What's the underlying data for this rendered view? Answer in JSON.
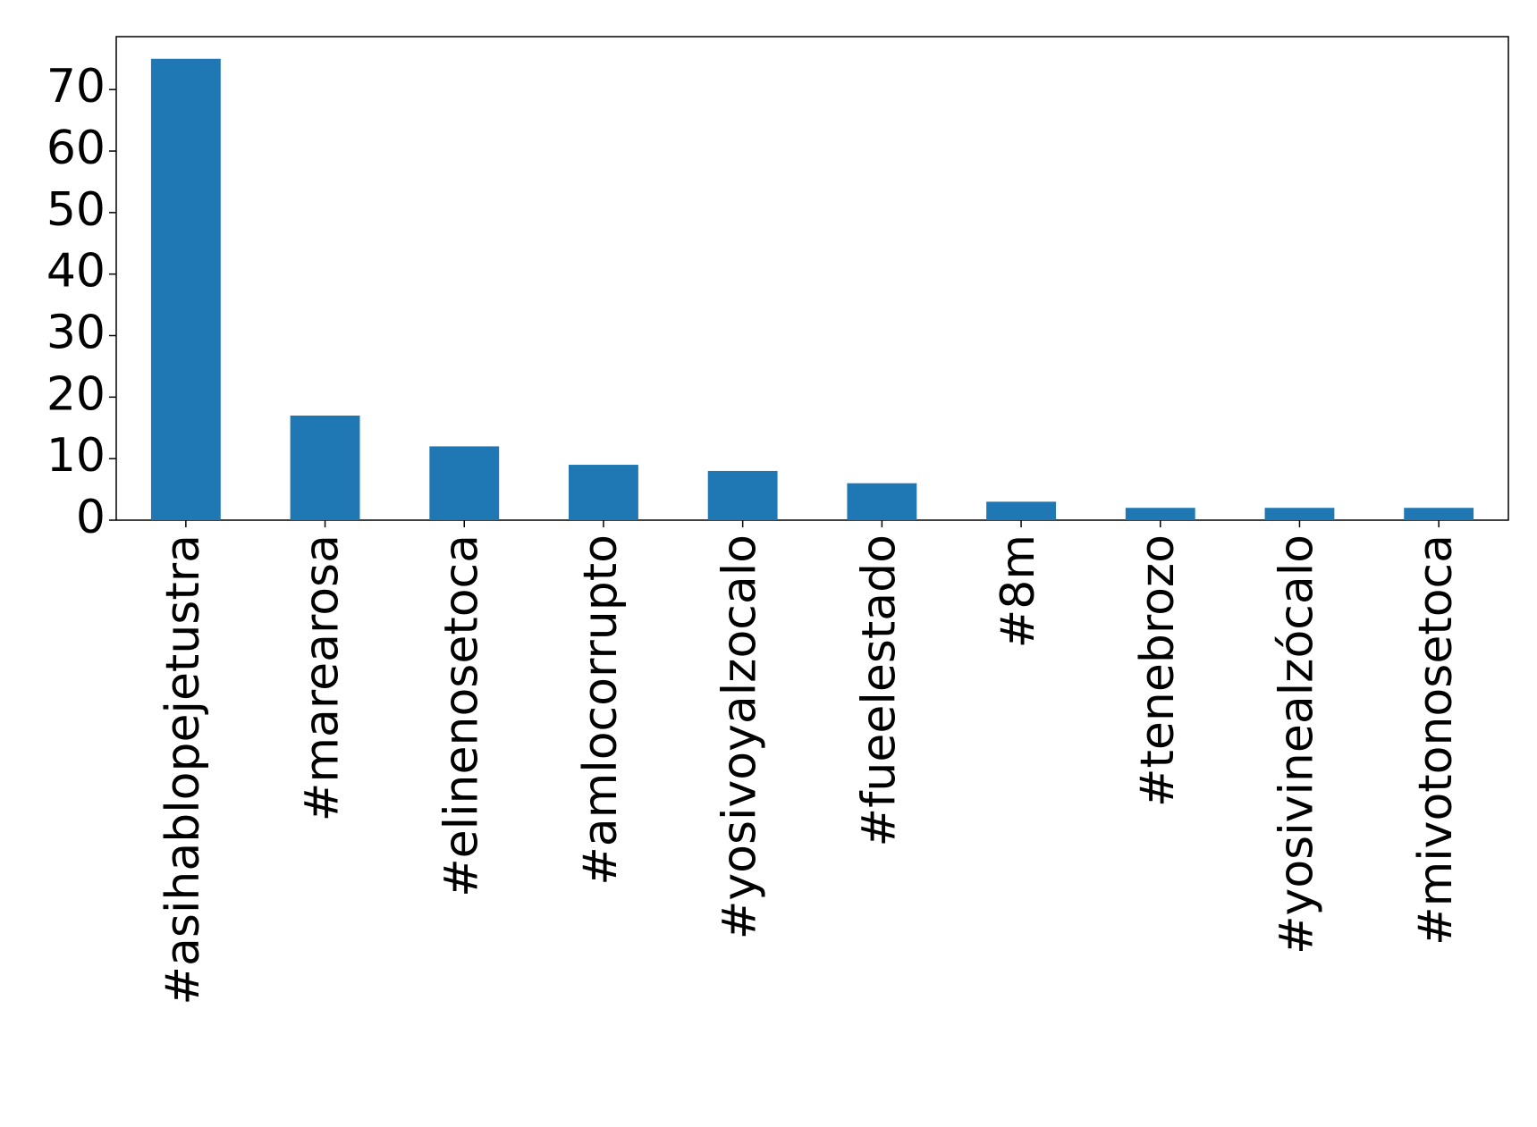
{
  "chart_data": {
    "type": "bar",
    "categories": [
      "#asihablopejetustra",
      "#marearosa",
      "#elinenosetoca",
      "#amlocorrupto",
      "#yosivoyalzocalo",
      "#fueelestado",
      "#8m",
      "#tenebrozo",
      "#yosivinealzócalo",
      "#mivotonosetoca"
    ],
    "values": [
      75,
      17,
      12,
      9,
      8,
      6,
      3,
      2,
      2,
      2
    ],
    "color": "#1f77b4",
    "ylim": [
      0,
      78.6
    ],
    "yticks": [
      0,
      10,
      20,
      30,
      40,
      50,
      60,
      70
    ],
    "grid": false
  }
}
